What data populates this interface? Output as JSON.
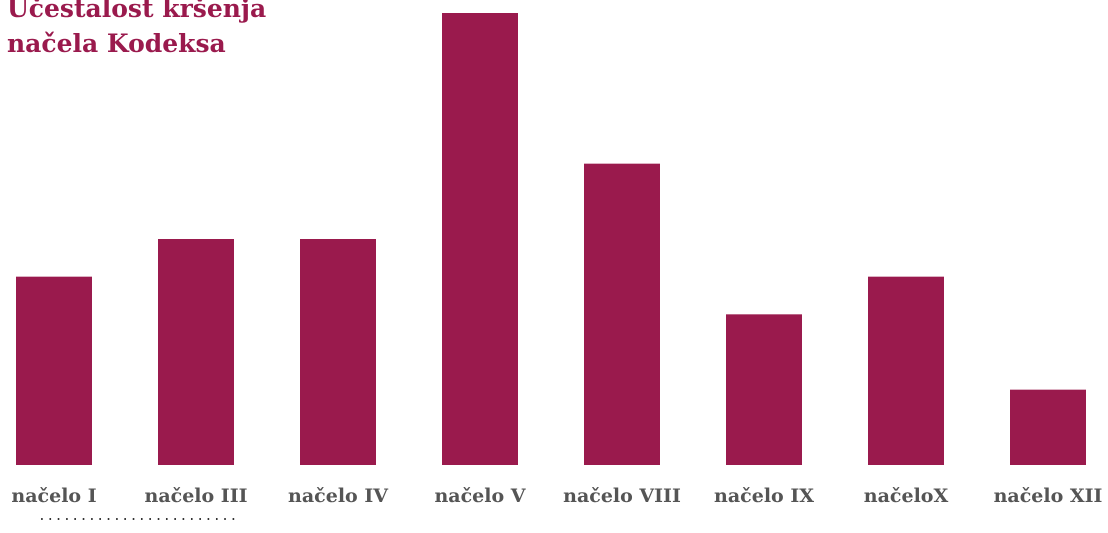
{
  "chart_data": {
    "type": "bar",
    "title_lines": [
      "Učestalost kršenja",
      "načela Kodeksa"
    ],
    "categories": [
      "načelo I",
      "načelo III",
      "načelo IV",
      "načelo V",
      "načelo VIII",
      "načelo IX",
      "načeloX",
      "načelo XII"
    ],
    "values": [
      5,
      6,
      6,
      12,
      8,
      4,
      5,
      2
    ],
    "ylim": [
      0,
      12
    ],
    "grid": false,
    "bar_color": "#9a1a4d",
    "label_color": "#555555"
  },
  "footer": {
    "dots": "........................"
  }
}
